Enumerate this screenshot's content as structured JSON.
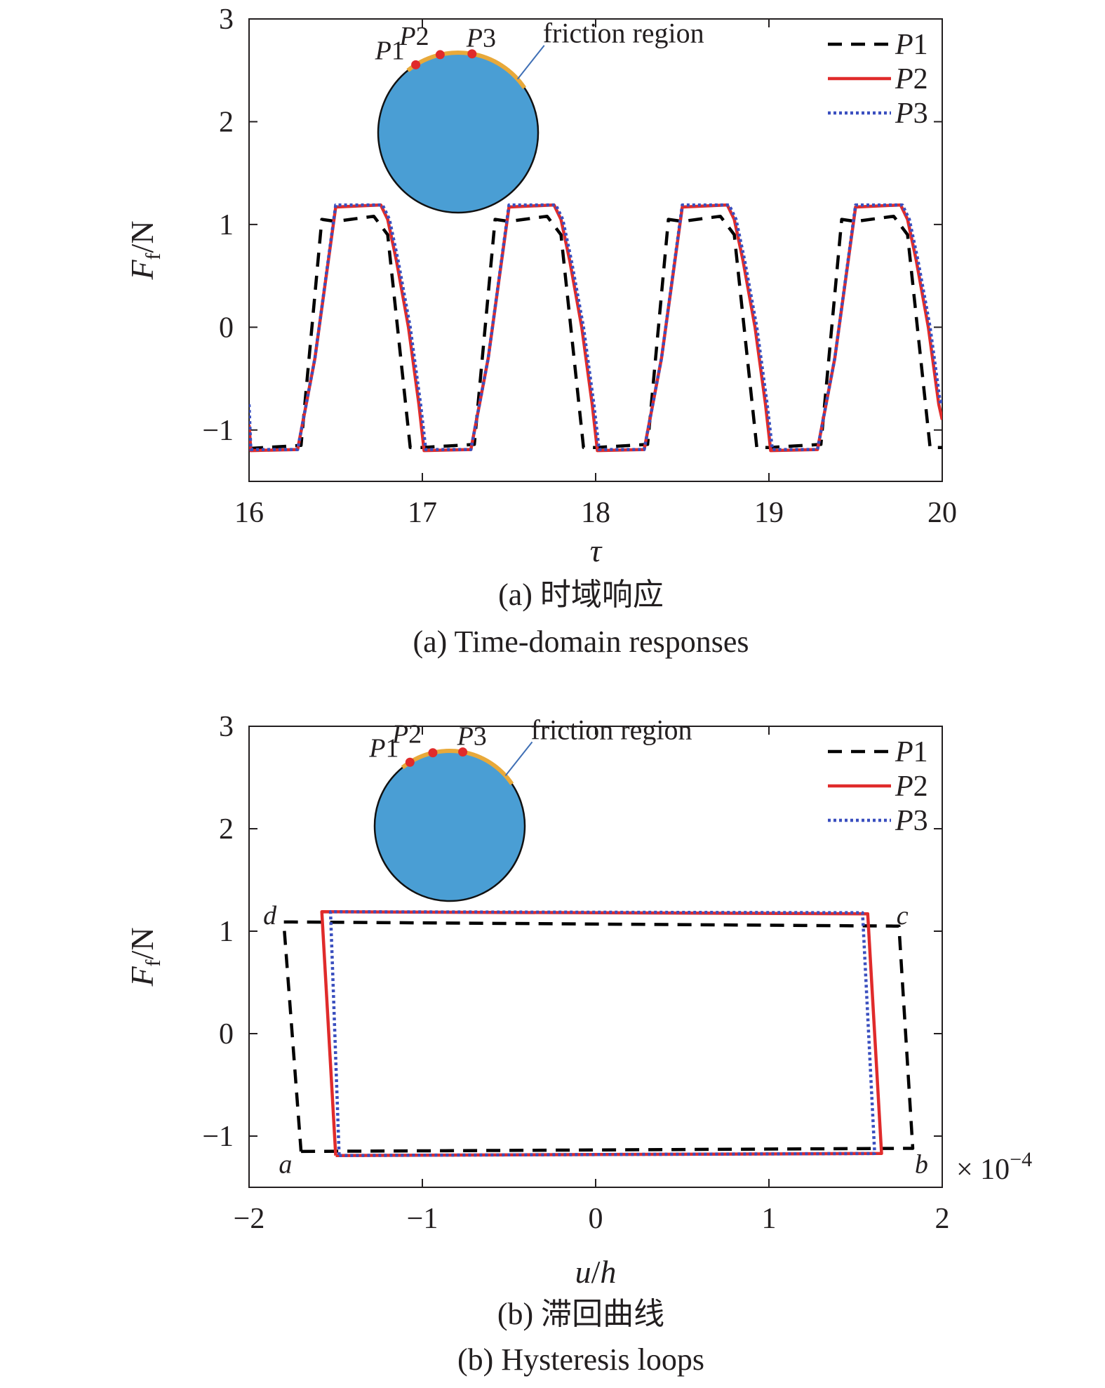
{
  "figure": {
    "colors": {
      "axis": "#231f20",
      "P1": "#000000",
      "P2": "#e02b2b",
      "P3": "#3a4fbf",
      "disk": "#4a9ed4",
      "friction_arc": "#e8a93a",
      "points": "#e02b2b",
      "leader": "#3f6fb5"
    }
  },
  "chart_data": [
    {
      "type": "line",
      "panel": "a",
      "caption_cn": "(a) 时域响应",
      "caption_en": "(a) Time-domain responses",
      "xlabel": "τ",
      "ylabel_main": "F",
      "ylabel_sub": "f",
      "ylabel_unit": "/N",
      "xlim": [
        16,
        20
      ],
      "ylim": [
        -1.5,
        3
      ],
      "xticks": [
        "16",
        "17",
        "18",
        "19",
        "20"
      ],
      "yticks": [
        "−1",
        "0",
        "1",
        "2",
        "3"
      ],
      "grid": false,
      "legend_position": "top-right",
      "legend": [
        {
          "name": "P",
          "num": "1",
          "style": "dashed"
        },
        {
          "name": "P",
          "num": "2",
          "style": "solid"
        },
        {
          "name": "P",
          "num": "3",
          "style": "dotted"
        }
      ],
      "inset": {
        "annotation": "friction region",
        "points": [
          {
            "name": "P",
            "num": "1"
          },
          {
            "name": "P",
            "num": "2"
          },
          {
            "name": "P",
            "num": "3"
          }
        ]
      },
      "series": [
        {
          "name": "P1",
          "x": [
            16.0,
            16.3,
            16.42,
            16.5,
            16.72,
            16.8,
            16.93,
            17.0,
            17.3,
            17.42,
            17.5,
            17.72,
            17.8,
            17.93,
            18.0,
            18.3,
            18.42,
            18.5,
            18.72,
            18.8,
            18.93,
            19.0,
            19.3,
            19.42,
            19.5,
            19.72,
            19.8,
            19.93,
            20.0
          ],
          "y": [
            -1.18,
            -1.15,
            1.05,
            1.03,
            1.08,
            0.9,
            -1.17,
            -1.17,
            -1.14,
            1.05,
            1.03,
            1.08,
            0.9,
            -1.17,
            -1.17,
            -1.14,
            1.05,
            1.03,
            1.08,
            0.9,
            -1.17,
            -1.17,
            -1.14,
            1.05,
            1.03,
            1.08,
            0.9,
            -1.17,
            -1.17
          ]
        },
        {
          "name": "P2",
          "x": [
            16.0,
            16.01,
            16.28,
            16.38,
            16.5,
            16.76,
            16.8,
            16.85,
            16.92,
            16.98,
            17.01,
            17.28,
            17.38,
            17.5,
            17.76,
            17.8,
            17.85,
            17.92,
            17.98,
            18.01,
            18.28,
            18.38,
            18.5,
            18.76,
            18.8,
            18.85,
            18.92,
            18.98,
            19.01,
            19.28,
            19.38,
            19.5,
            19.76,
            19.8,
            19.85,
            19.92,
            19.98,
            20.0
          ],
          "y": [
            -0.95,
            -1.2,
            -1.19,
            -0.3,
            1.17,
            1.19,
            1.05,
            0.65,
            0.0,
            -0.75,
            -1.2,
            -1.19,
            -0.3,
            1.17,
            1.19,
            1.05,
            0.65,
            0.0,
            -0.75,
            -1.2,
            -1.19,
            -0.3,
            1.17,
            1.19,
            1.05,
            0.65,
            0.0,
            -0.75,
            -1.2,
            -1.19,
            -0.3,
            1.17,
            1.19,
            1.05,
            0.65,
            0.0,
            -0.75,
            -0.9
          ]
        },
        {
          "name": "P3",
          "x": [
            16.0,
            16.01,
            16.28,
            16.38,
            16.5,
            16.77,
            16.81,
            16.86,
            16.93,
            16.99,
            17.02,
            17.28,
            17.38,
            17.5,
            17.77,
            17.81,
            17.86,
            17.93,
            17.99,
            18.02,
            18.28,
            18.38,
            18.5,
            18.77,
            18.81,
            18.86,
            18.93,
            18.99,
            19.02,
            19.28,
            19.38,
            19.5,
            19.77,
            19.81,
            19.86,
            19.93,
            19.99,
            20.0
          ],
          "y": [
            -0.75,
            -1.19,
            -1.19,
            -0.3,
            1.19,
            1.19,
            1.05,
            0.65,
            0.0,
            -0.75,
            -1.19,
            -1.19,
            -0.3,
            1.19,
            1.19,
            1.05,
            0.65,
            0.0,
            -0.75,
            -1.19,
            -1.19,
            -0.3,
            1.19,
            1.19,
            1.05,
            0.65,
            0.0,
            -0.75,
            -1.19,
            -1.19,
            -0.3,
            1.19,
            1.19,
            1.05,
            0.65,
            0.0,
            -0.75,
            -0.7
          ]
        }
      ]
    },
    {
      "type": "line",
      "panel": "b",
      "caption_cn": "(b) 滞回曲线",
      "caption_en": "(b) Hysteresis loops",
      "xlabel_u": "u",
      "xlabel_slash": "/",
      "xlabel_h": "h",
      "ylabel_main": "F",
      "ylabel_sub": "f",
      "ylabel_unit": "/N",
      "xlim": [
        -2,
        2
      ],
      "ylim": [
        -1.5,
        3
      ],
      "x_multiplier_base": "× 10",
      "x_multiplier_exp": "−4",
      "xticks": [
        "−2",
        "−1",
        "0",
        "1",
        "2"
      ],
      "yticks": [
        "−1",
        "0",
        "1",
        "2",
        "3"
      ],
      "grid": false,
      "legend_position": "top-right",
      "legend": [
        {
          "name": "P",
          "num": "1",
          "style": "dashed"
        },
        {
          "name": "P",
          "num": "2",
          "style": "solid"
        },
        {
          "name": "P",
          "num": "3",
          "style": "dotted"
        }
      ],
      "corner_labels": [
        "a",
        "b",
        "c",
        "d"
      ],
      "inset": {
        "annotation": "friction region",
        "points": [
          {
            "name": "P",
            "num": "1"
          },
          {
            "name": "P",
            "num": "2"
          },
          {
            "name": "P",
            "num": "3"
          }
        ]
      },
      "series": [
        {
          "name": "P1",
          "x": [
            -1.7,
            1.78,
            1.83,
            1.75,
            1.72,
            -1.75,
            -1.8,
            -1.7
          ],
          "y": [
            -1.15,
            -1.12,
            -1.12,
            1.05,
            1.05,
            1.09,
            1.09,
            -1.15
          ]
        },
        {
          "name": "P2",
          "x": [
            -1.5,
            1.65,
            1.65,
            1.57,
            1.56,
            -1.58,
            -1.58,
            -1.5
          ],
          "y": [
            -1.19,
            -1.17,
            -1.17,
            1.17,
            1.17,
            1.19,
            1.19,
            -1.19
          ]
        },
        {
          "name": "P3",
          "x": [
            -1.48,
            1.61,
            1.61,
            1.54,
            1.54,
            -1.53,
            -1.53,
            -1.48
          ],
          "y": [
            -1.19,
            -1.17,
            -1.17,
            1.18,
            1.18,
            1.19,
            1.19,
            -1.19
          ]
        }
      ]
    }
  ]
}
